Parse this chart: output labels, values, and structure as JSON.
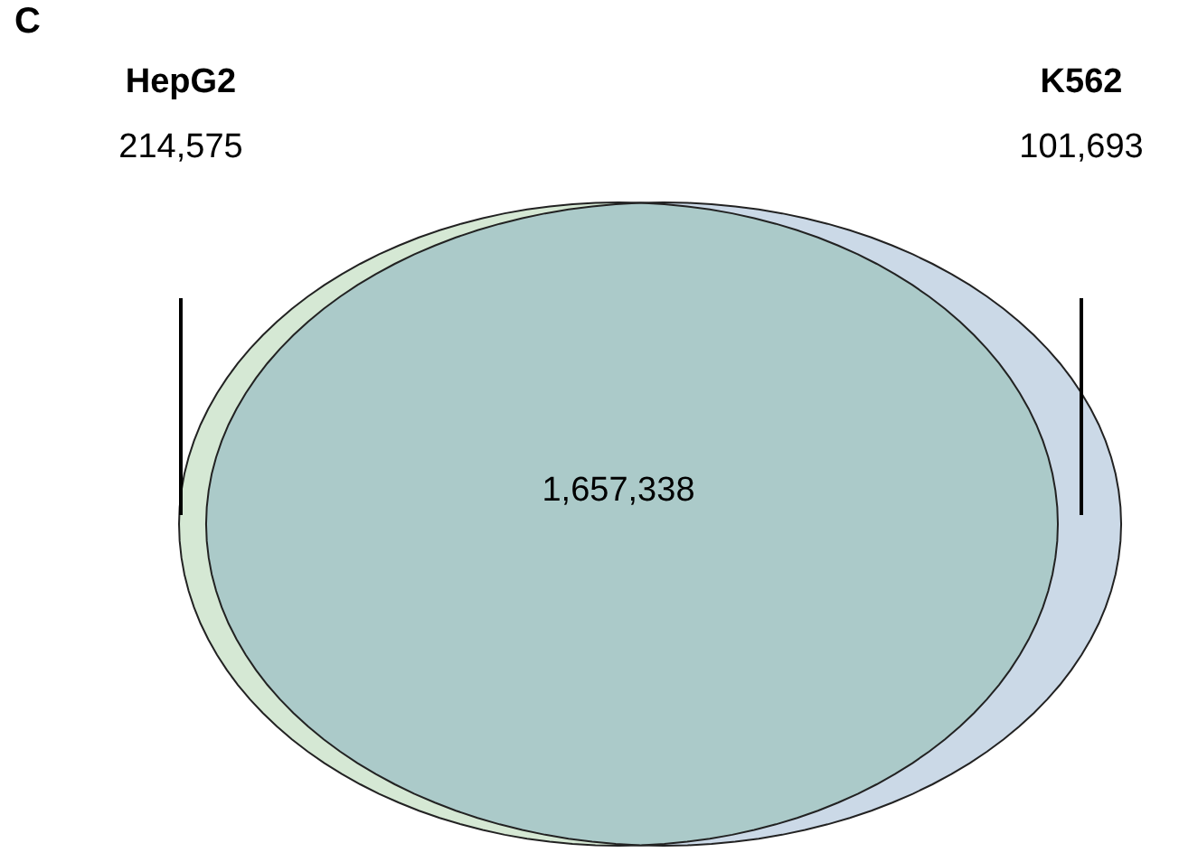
{
  "chart_data": {
    "type": "other",
    "title": "C",
    "categories": [
      "HepG2",
      "K562",
      null
    ],
    "values": [
      214575,
      101693,
      1657338
    ],
    "value_labels": [
      "214,575",
      "101,693",
      "1,657,338"
    ],
    "colors": [
      "#d5e8d4",
      "#cbd9e7",
      "#abcac9"
    ]
  }
}
